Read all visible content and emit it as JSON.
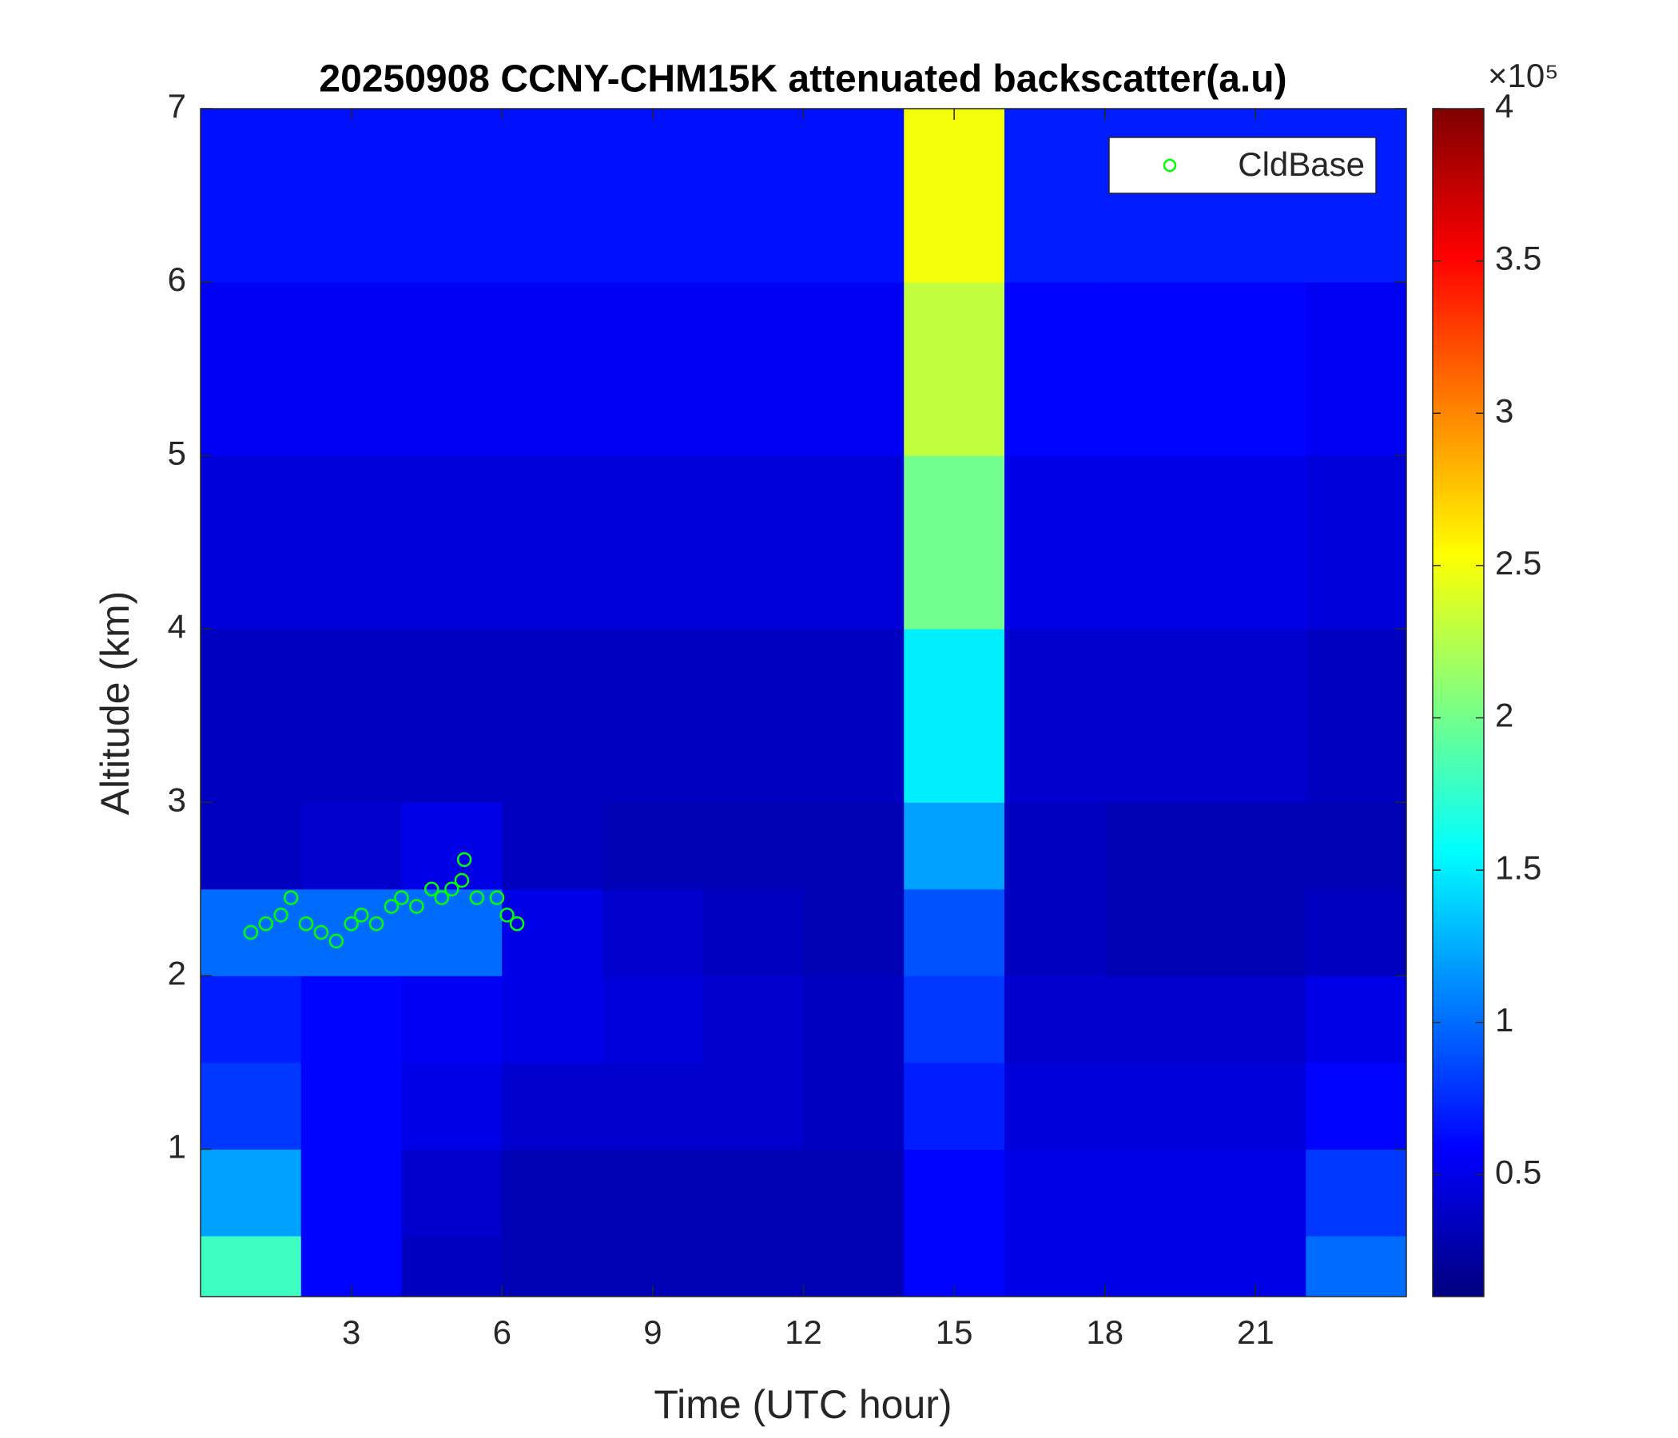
{
  "chart_data": {
    "type": "heatmap",
    "title": "20250908 CCNY-CHM15K attenuated backscatter(a.u)",
    "xlabel": "Time (UTC hour)",
    "ylabel": "Altitude (km)",
    "xlim": [
      0,
      24
    ],
    "ylim": [
      0.15,
      7
    ],
    "xticks": [
      3,
      6,
      9,
      12,
      15,
      18,
      21
    ],
    "yticks": [
      1,
      2,
      3,
      4,
      5,
      6,
      7
    ],
    "colormap": "jet",
    "clim": [
      0.1,
      4
    ],
    "colorbar_ticks": [
      0.5,
      1,
      1.5,
      2,
      2.5,
      3,
      3.5,
      4
    ],
    "colorbar_exponent_label": "×10⁵",
    "x_bins": [
      0,
      2,
      4,
      6,
      8,
      10,
      12,
      14,
      16,
      18,
      20,
      22,
      24
    ],
    "y_bins": [
      0.15,
      0.5,
      1,
      1.5,
      2,
      2.5,
      3,
      4,
      5,
      6,
      7
    ],
    "z": [
      [
        1.8,
        0.6,
        0.35,
        0.3,
        0.3,
        0.3,
        0.3,
        0.6,
        0.5,
        0.5,
        0.5,
        1.0
      ],
      [
        1.2,
        0.6,
        0.4,
        0.3,
        0.3,
        0.3,
        0.3,
        0.6,
        0.5,
        0.5,
        0.5,
        0.8
      ],
      [
        0.8,
        0.6,
        0.5,
        0.4,
        0.4,
        0.4,
        0.35,
        0.7,
        0.45,
        0.45,
        0.45,
        0.6
      ],
      [
        0.7,
        0.6,
        0.55,
        0.5,
        0.45,
        0.4,
        0.35,
        0.8,
        0.4,
        0.4,
        0.4,
        0.5
      ],
      [
        1.0,
        1.0,
        1.0,
        0.5,
        0.4,
        0.35,
        0.3,
        0.9,
        0.35,
        0.3,
        0.3,
        0.35
      ],
      [
        0.35,
        0.4,
        0.5,
        0.35,
        0.3,
        0.3,
        0.3,
        1.2,
        0.35,
        0.3,
        0.3,
        0.3
      ],
      [
        0.35,
        0.35,
        0.35,
        0.35,
        0.35,
        0.35,
        0.35,
        1.5,
        0.4,
        0.4,
        0.4,
        0.35
      ],
      [
        0.45,
        0.45,
        0.45,
        0.45,
        0.45,
        0.45,
        0.45,
        2.0,
        0.5,
        0.5,
        0.5,
        0.45
      ],
      [
        0.55,
        0.55,
        0.55,
        0.55,
        0.55,
        0.55,
        0.55,
        2.3,
        0.6,
        0.6,
        0.6,
        0.55
      ],
      [
        0.65,
        0.65,
        0.65,
        0.65,
        0.65,
        0.65,
        0.65,
        2.5,
        0.7,
        0.7,
        0.7,
        0.7
      ]
    ],
    "series": [
      {
        "name": "CldBase",
        "type": "scatter",
        "color": "#00ff00",
        "x": [
          1.0,
          1.3,
          1.6,
          1.8,
          2.1,
          2.4,
          2.7,
          3.0,
          3.2,
          3.5,
          3.8,
          4.0,
          4.3,
          4.6,
          4.8,
          5.0,
          5.2,
          5.25,
          5.5,
          5.9,
          6.1,
          6.3
        ],
        "values": [
          2.25,
          2.3,
          2.35,
          2.45,
          2.3,
          2.25,
          2.2,
          2.3,
          2.35,
          2.3,
          2.4,
          2.45,
          2.4,
          2.5,
          2.45,
          2.5,
          2.55,
          2.67,
          2.45,
          2.45,
          2.35,
          2.3
        ]
      }
    ],
    "legend": "northeast"
  }
}
